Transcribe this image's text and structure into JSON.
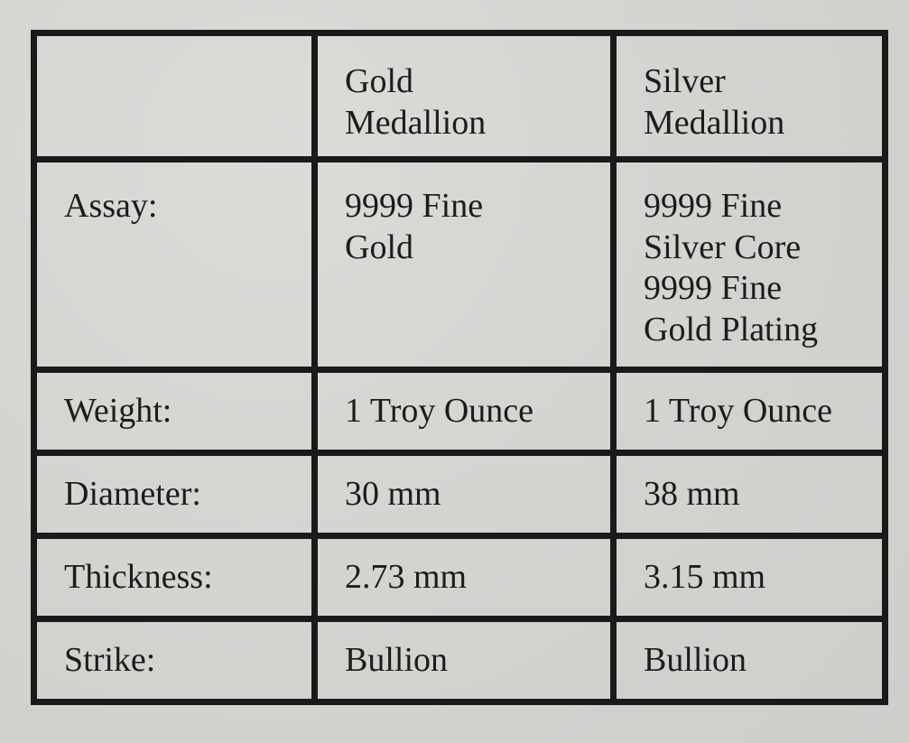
{
  "table": {
    "columns": [
      "",
      "Gold Medallion",
      "Silver Medallion"
    ],
    "column_lines": [
      [],
      [
        "Gold",
        "Medallion"
      ],
      [
        "Silver",
        "Medallion"
      ]
    ],
    "rows": [
      {
        "label": "Assay:",
        "gold_lines": [
          "9999 Fine",
          "Gold"
        ],
        "silver_lines": [
          "9999 Fine",
          "Silver Core",
          "9999 Fine",
          "Gold Plating"
        ]
      },
      {
        "label": "Weight:",
        "gold": "1 Troy Ounce",
        "silver": "1 Troy Ounce"
      },
      {
        "label": "Diameter:",
        "gold": "30 mm",
        "silver": "38 mm"
      },
      {
        "label": "Thickness:",
        "gold": "2.73 mm",
        "silver": "3.15 mm"
      },
      {
        "label": "Strike:",
        "gold": "Bullion",
        "silver": "Bullion"
      }
    ]
  },
  "colors": {
    "paper": "#d6d5d2",
    "ink": "#1a1a1a"
  }
}
